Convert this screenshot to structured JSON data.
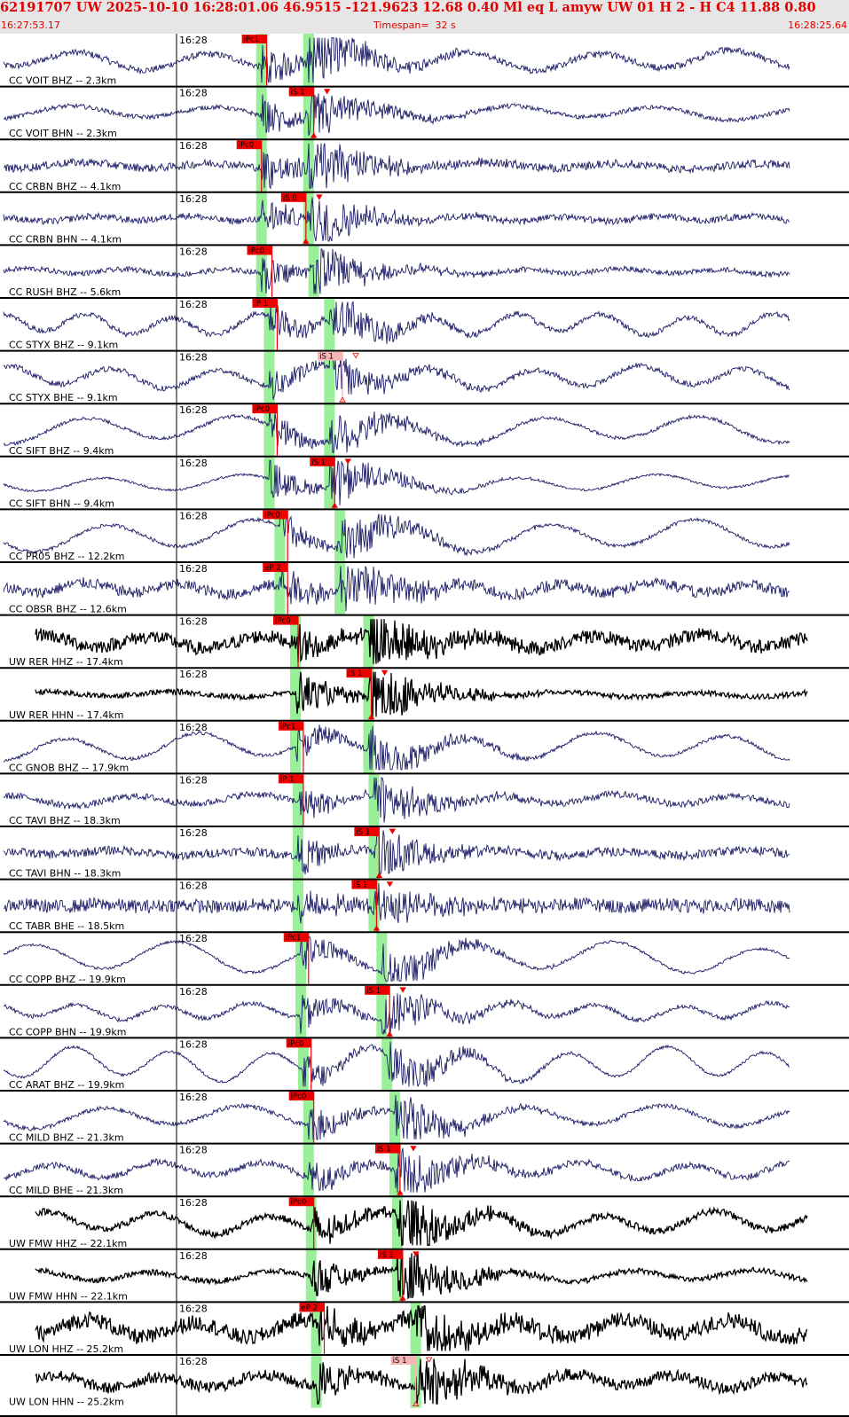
{
  "header": {
    "summary": "62191707 UW 2025-10-10 16:28:01.06   46.9515 -121.9623  12.68  0.40 Ml  eq  L amyw     UW 01  H   2  -  H C4   11.88  0.80",
    "start_time": "16:27:53.17",
    "timespan": "Timespan=  32 s",
    "end_time": "16:28:25.64"
  },
  "colors": {
    "pick": "#ee0000",
    "pick_weak": "#f5b5b5",
    "window": "#99f099",
    "trace_bh": "#1a1a66",
    "trace_hh": "#000000",
    "grid": "#000000"
  },
  "time_axis": {
    "start_s": 0,
    "span_s": 32.47,
    "tick_label": "16:28"
  },
  "traces": [
    {
      "label": "CC VOIT BHZ -- 2.3km",
      "type": "BH",
      "pick": {
        "label": "iPc1",
        "t": 10.2,
        "weak": false
      },
      "win_p": 10.0,
      "win_s": 11.8,
      "amp": 0.7,
      "noise": 0.15,
      "wave": 0.35
    },
    {
      "label": "CC VOIT BHN -- 2.3km",
      "type": "BH",
      "pick": {
        "label": "iS 1",
        "t": 12.0,
        "weak": false
      },
      "win_p": 10.0,
      "win_s": 11.8,
      "amp": 0.6,
      "noise": 0.1,
      "wave": 0.25
    },
    {
      "label": "CC CRBN BHZ -- 4.1km",
      "type": "BH",
      "pick": {
        "label": "iPc0",
        "t": 10.0,
        "weak": false
      },
      "win_p": 10.0,
      "win_s": 11.8,
      "amp": 0.7,
      "noise": 0.18,
      "wave": 0.12
    },
    {
      "label": "CC CRBN BHN -- 4.1km",
      "type": "BH",
      "pick": {
        "label": "iS 0",
        "t": 11.7,
        "weak": false
      },
      "win_p": 10.0,
      "win_s": 11.8,
      "amp": 0.6,
      "noise": 0.15,
      "wave": 0.1
    },
    {
      "label": "CC RUSH BHZ -- 5.6km",
      "type": "BH",
      "pick": {
        "label": "iPc0",
        "t": 10.4,
        "weak": false
      },
      "win_p": 10.0,
      "win_s": 12.0,
      "amp": 0.6,
      "noise": 0.12,
      "wave": 0.1
    },
    {
      "label": "CC STYX BHZ -- 9.1km",
      "type": "BH",
      "pick": {
        "label": "iP 1",
        "t": 10.6,
        "weak": false
      },
      "win_p": 10.3,
      "win_s": 12.6,
      "amp": 0.6,
      "noise": 0.12,
      "wave": 0.4
    },
    {
      "label": "CC STYX BHE -- 9.1km",
      "type": "BH",
      "pick": {
        "label": "iS 1",
        "t": 13.1,
        "weak": true
      },
      "win_p": 10.3,
      "win_s": 12.6,
      "amp": 0.5,
      "noise": 0.12,
      "wave": 0.4
    },
    {
      "label": "CC SIFT BHZ -- 9.4km",
      "type": "BH",
      "pick": {
        "label": "iPc0",
        "t": 10.6,
        "weak": false
      },
      "win_p": 10.3,
      "win_s": 12.6,
      "amp": 0.6,
      "noise": 0.08,
      "wave": 0.5
    },
    {
      "label": "CC SIFT BHN -- 9.4km",
      "type": "BH",
      "pick": {
        "label": "iS 1",
        "t": 12.8,
        "weak": false
      },
      "win_p": 10.3,
      "win_s": 12.6,
      "amp": 0.6,
      "noise": 0.05,
      "wave": 0.3
    },
    {
      "label": "CC PR05 BHZ -- 12.2km",
      "type": "BH",
      "pick": {
        "label": "iPc0",
        "t": 11.0,
        "weak": false
      },
      "win_p": 10.7,
      "win_s": 13.0,
      "amp": 0.6,
      "noise": 0.08,
      "wave": 0.55
    },
    {
      "label": "CC OBSR BHZ -- 12.6km",
      "type": "BH",
      "pick": {
        "label": "eP 2",
        "t": 11.0,
        "weak": false
      },
      "win_p": 10.7,
      "win_s": 13.0,
      "amp": 0.7,
      "noise": 0.25,
      "wave": 0.2
    },
    {
      "label": "UW RER HHZ -- 17.4km",
      "type": "HH",
      "pick": {
        "label": "iPc0",
        "t": 11.4,
        "weak": false
      },
      "win_p": 11.3,
      "win_s": 14.1,
      "amp": 0.7,
      "noise": 0.3,
      "wave": 0.25
    },
    {
      "label": "UW RER HHN -- 17.4km",
      "type": "HH",
      "pick": {
        "label": "iS 1",
        "t": 14.2,
        "weak": false
      },
      "win_p": 11.3,
      "win_s": 14.1,
      "amp": 0.7,
      "noise": 0.12,
      "wave": 0.1
    },
    {
      "label": "CC GNOB BHZ -- 17.9km",
      "type": "BH",
      "pick": {
        "label": "iPc1",
        "t": 11.6,
        "weak": false
      },
      "win_p": 11.3,
      "win_s": 14.1,
      "amp": 0.6,
      "noise": 0.08,
      "wave": 0.5
    },
    {
      "label": "CC TAVI BHZ -- 18.3km",
      "type": "BH",
      "pick": {
        "label": "iP 1",
        "t": 11.6,
        "weak": false
      },
      "win_p": 11.4,
      "win_s": 14.3,
      "amp": 0.6,
      "noise": 0.15,
      "wave": 0.2
    },
    {
      "label": "CC TAVI BHN -- 18.3km",
      "type": "BH",
      "pick": {
        "label": "iS 1",
        "t": 14.5,
        "weak": false
      },
      "win_p": 11.4,
      "win_s": 14.3,
      "amp": 0.6,
      "noise": 0.2,
      "wave": 0.1
    },
    {
      "label": "CC TABR BHE -- 18.5km",
      "type": "BH",
      "pick": {
        "label": "iS 1",
        "t": 14.4,
        "weak": false
      },
      "win_p": 11.4,
      "win_s": 14.3,
      "amp": 0.5,
      "noise": 0.3,
      "wave": 0.05
    },
    {
      "label": "CC COPP BHZ -- 19.9km",
      "type": "BH",
      "pick": {
        "label": "iPc1",
        "t": 11.8,
        "weak": false
      },
      "win_p": 11.5,
      "win_s": 14.6,
      "amp": 0.6,
      "noise": 0.06,
      "wave": 0.6
    },
    {
      "label": "CC COPP BHN -- 19.9km",
      "type": "BH",
      "pick": {
        "label": "iS 1",
        "t": 14.9,
        "weak": false
      },
      "win_p": 11.5,
      "win_s": 14.6,
      "amp": 0.6,
      "noise": 0.1,
      "wave": 0.3
    },
    {
      "label": "CC ARAT BHZ -- 19.9km",
      "type": "BH",
      "pick": {
        "label": "iPc0",
        "t": 11.9,
        "weak": false
      },
      "win_p": 11.6,
      "win_s": 14.8,
      "amp": 0.6,
      "noise": 0.06,
      "wave": 0.6
    },
    {
      "label": "CC MILD BHZ -- 21.3km",
      "type": "BH",
      "pick": {
        "label": "iPc0",
        "t": 12.0,
        "weak": false
      },
      "win_p": 11.8,
      "win_s": 15.1,
      "amp": 0.6,
      "noise": 0.1,
      "wave": 0.4
    },
    {
      "label": "CC MILD BHE -- 21.3km",
      "type": "BH",
      "pick": {
        "label": "iS 1",
        "t": 15.3,
        "weak": false
      },
      "win_p": 11.8,
      "win_s": 15.1,
      "amp": 0.6,
      "noise": 0.15,
      "wave": 0.3
    },
    {
      "label": "UW FMW HHZ -- 22.1km",
      "type": "HH",
      "pick": {
        "label": "iPc0",
        "t": 12.0,
        "weak": false
      },
      "win_p": 11.9,
      "win_s": 15.2,
      "amp": 0.7,
      "noise": 0.15,
      "wave": 0.4
    },
    {
      "label": "UW FMW HHN -- 22.1km",
      "type": "HH",
      "pick": {
        "label": "iS 1",
        "t": 15.4,
        "weak": false
      },
      "win_p": 11.9,
      "win_s": 15.2,
      "amp": 0.7,
      "noise": 0.12,
      "wave": 0.2
    },
    {
      "label": "UW LON HHZ -- 25.2km",
      "type": "HH",
      "pick": {
        "label": "eP 2",
        "t": 12.4,
        "weak": false
      },
      "win_p": 12.1,
      "win_s": 15.9,
      "amp": 0.75,
      "noise": 0.35,
      "wave": 0.35
    },
    {
      "label": "UW LON HHN -- 25.2km",
      "type": "HH",
      "pick": {
        "label": "iS 1",
        "t": 15.9,
        "weak": true
      },
      "win_p": 12.1,
      "win_s": 15.9,
      "amp": 0.75,
      "noise": 0.25,
      "wave": 0.25
    }
  ]
}
